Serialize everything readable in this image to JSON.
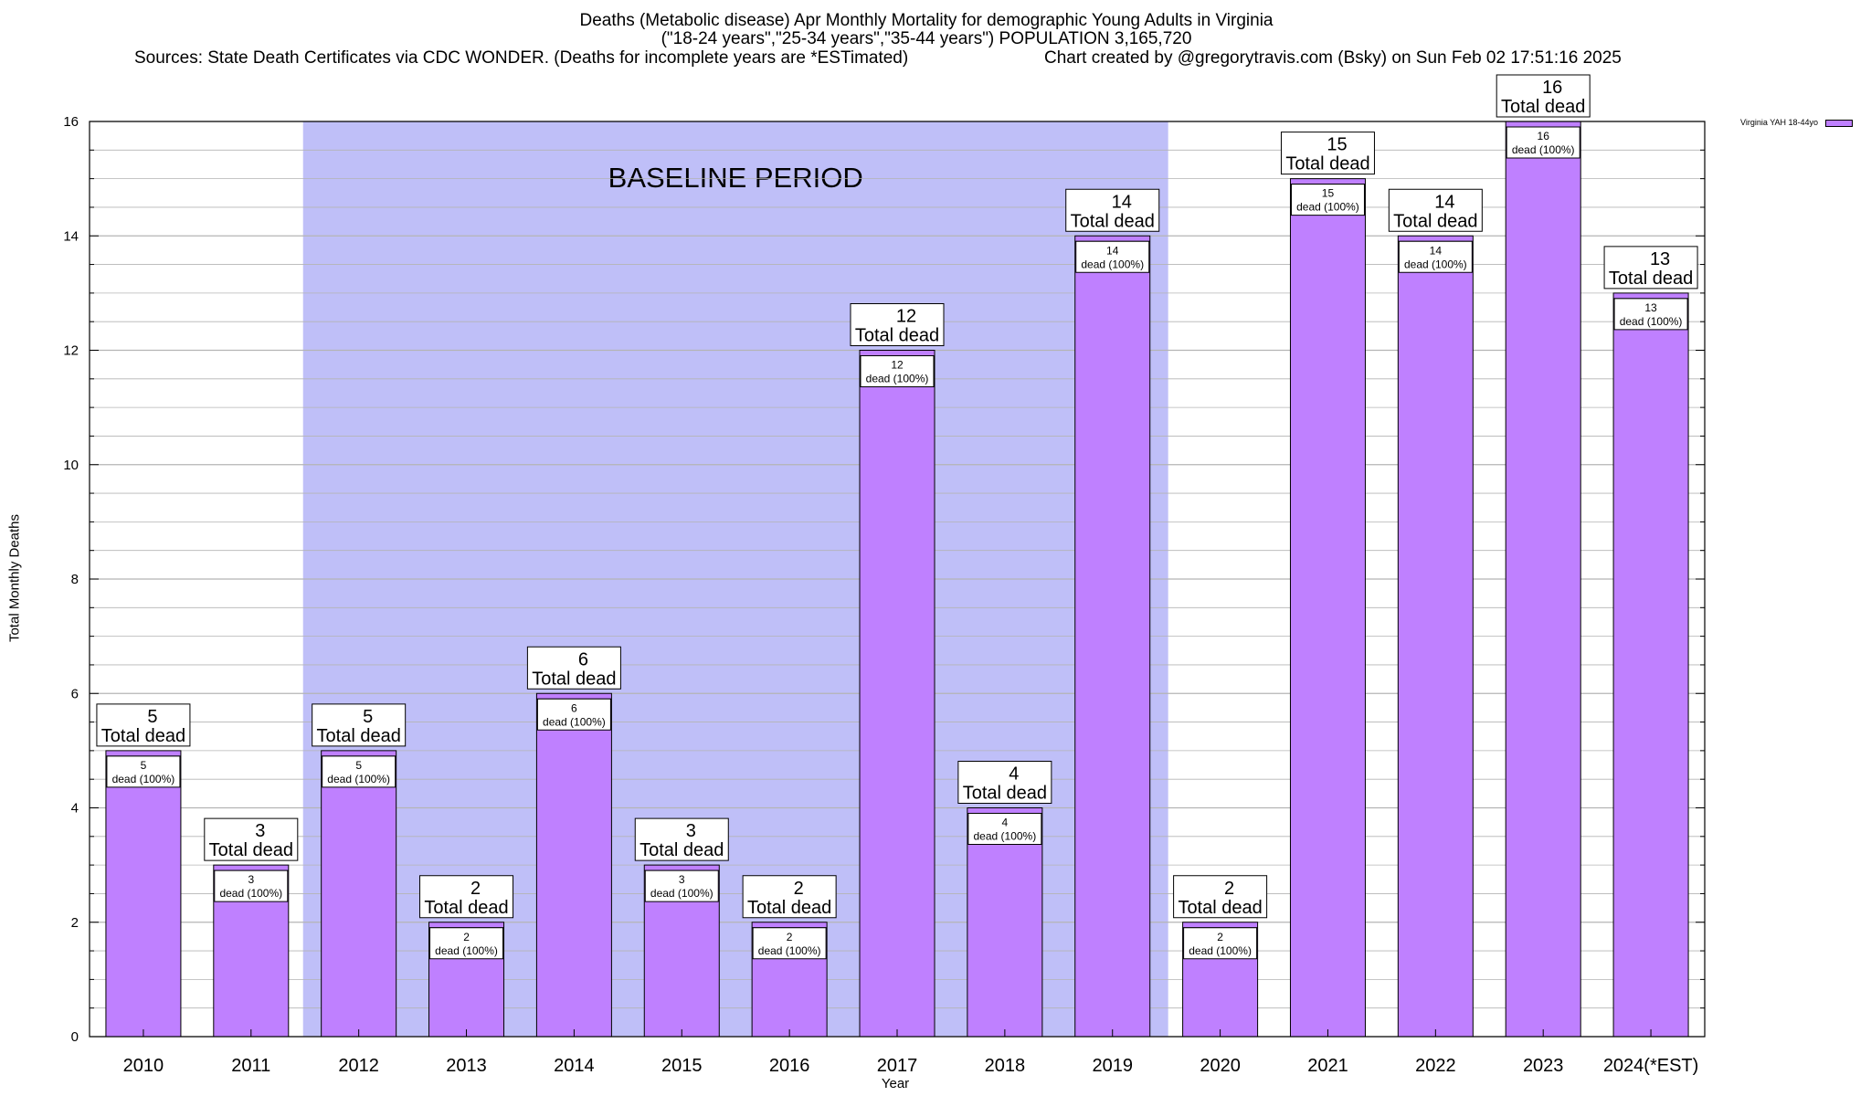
{
  "title": {
    "line1": "Deaths (Metabolic disease) Apr Monthly Mortality for demographic Young Adults in Virginia",
    "line2": "(\"18-24 years\",\"25-34 years\",\"35-44 years\") POPULATION 3,165,720",
    "line3_left": "Sources: State Death Certificates via CDC WONDER. (Deaths for incomplete years are *ESTimated)",
    "line3_right": "Chart created by @gregorytravis.com (Bsky) on Sun Feb 02 17:51:16 2025"
  },
  "chart_data": {
    "type": "bar",
    "categories": [
      "2010",
      "2011",
      "2012",
      "2013",
      "2014",
      "2015",
      "2016",
      "2017",
      "2018",
      "2019",
      "2020",
      "2021",
      "2022",
      "2023",
      "2024(*EST)"
    ],
    "series": [
      {
        "name": "Virginia YAH 18-44yo",
        "values": [
          5,
          3,
          5,
          2,
          6,
          3,
          2,
          12,
          4,
          14,
          2,
          15,
          14,
          16,
          13
        ]
      }
    ],
    "total_label_suffix": "Total dead",
    "inner_label_suffix": "dead (100%)",
    "baseline": {
      "label": "BASELINE PERIOD",
      "from": "2012",
      "to": "2019"
    },
    "xlabel": "Year",
    "ylabel": "Total Monthly Deaths",
    "ylim": [
      0,
      16
    ],
    "yticks": [
      0,
      2,
      4,
      6,
      8,
      10,
      12,
      14,
      16
    ],
    "grid": true,
    "legend_position": "top-right",
    "colors": {
      "bar": "#bf80ff",
      "baseline_band": "#bfbff8",
      "grid": "#b4b4b4"
    }
  }
}
